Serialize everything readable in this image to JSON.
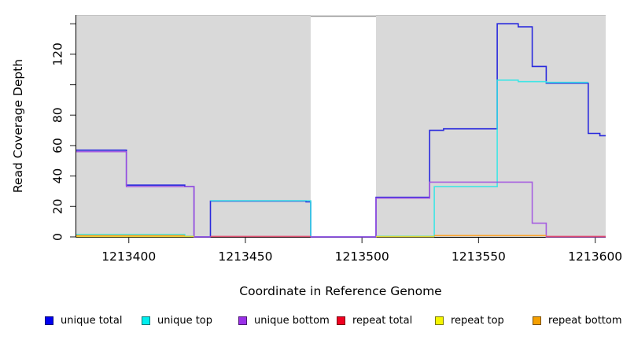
{
  "chart_data": {
    "type": "line",
    "subtype": "step-coverage",
    "title": "",
    "xlabel": "Coordinate in Reference Genome",
    "ylabel": "Read Coverage Depth",
    "xlim": [
      1213377.5,
      1213604.5
    ],
    "ylim": [
      0,
      145.8
    ],
    "x_ticks": [
      1213400,
      1213450,
      1213500,
      1213550,
      1213600
    ],
    "y_ticks_labeled": [
      0,
      20,
      40,
      60,
      80,
      120
    ],
    "y_ticks_unlabeled": [
      100,
      140
    ],
    "grid": false,
    "plot_background": "#d9d9d9",
    "masked_region": {
      "start": 1213478,
      "end": 1213506,
      "color": "#ffffff"
    },
    "legend_position": "bottom",
    "series": [
      {
        "name": "unique total",
        "color": "#1515dd",
        "legend_color": "#0000f0",
        "segments": [
          {
            "steps": [
              [
                1213377.5,
                57
              ],
              [
                1213399,
                34
              ],
              [
                1213424,
                33
              ],
              [
                1213428,
                0
              ],
              [
                1213435,
                23.5
              ],
              [
                1213476,
                23
              ],
              [
                1213478,
                0
              ],
              [
                1213506,
                26
              ],
              [
                1213529,
                70
              ],
              [
                1213535,
                71
              ],
              [
                1213558,
                140
              ],
              [
                1213567,
                138
              ],
              [
                1213573,
                112
              ],
              [
                1213579,
                101
              ],
              [
                1213597,
                68
              ],
              [
                1213602,
                66.5
              ]
            ],
            "end": 1213604.5
          }
        ]
      },
      {
        "name": "unique top",
        "color": "#30e6e6",
        "legend_color": "#00eeee",
        "segments": [
          {
            "steps": [
              [
                1213377.5,
                1.6
              ],
              [
                1213424,
                0.4
              ]
            ],
            "end": 1213428
          },
          {
            "steps": [
              [
                1213435,
                23.8
              ],
              [
                1213478,
                0
              ]
            ],
            "end": 1213478
          },
          {
            "steps": [
              [
                1213506,
                0.4
              ],
              [
                1213531,
                33
              ],
              [
                1213558,
                103
              ],
              [
                1213567,
                102
              ],
              [
                1213579,
                101.5
              ]
            ],
            "end": 1213597
          }
        ]
      },
      {
        "name": "unique bottom",
        "color": "#a050e0",
        "legend_color": "#9a30e8",
        "segments": [
          {
            "steps": [
              [
                1213377.5,
                56
              ],
              [
                1213399,
                33
              ],
              [
                1213428,
                0
              ]
            ],
            "end": 1213435
          },
          {
            "steps": [
              [
                1213478,
                0
              ],
              [
                1213506,
                25.5
              ],
              [
                1213529,
                36
              ],
              [
                1213573,
                9
              ],
              [
                1213579,
                0
              ]
            ],
            "end": 1213604.5
          }
        ]
      },
      {
        "name": "repeat total",
        "color": "#e04468",
        "legend_color": "#f00020",
        "segments": [
          {
            "steps": [
              [
                1213435,
                0.3
              ]
            ],
            "end": 1213478
          },
          {
            "steps": [
              [
                1213579,
                0.3
              ]
            ],
            "end": 1213604.5
          }
        ]
      },
      {
        "name": "repeat top",
        "color": "#ecd826",
        "legend_color": "#f5f500",
        "segments": [
          {
            "steps": [
              [
                1213377.5,
                0.3
              ]
            ],
            "end": 1213428
          },
          {
            "steps": [
              [
                1213506,
                0.2
              ]
            ],
            "end": 1213531
          }
        ]
      },
      {
        "name": "repeat bottom",
        "color": "#ff9f1a",
        "legend_color": "#f5a000",
        "segments": [
          {
            "steps": [
              [
                1213377.5,
                0.9
              ]
            ],
            "end": 1213424
          },
          {
            "steps": [
              [
                1213531,
                0.9
              ]
            ],
            "end": 1213579
          }
        ]
      }
    ]
  },
  "labels": {
    "xlabel": "Coordinate in Reference Genome",
    "ylabel": "Read Coverage Depth"
  }
}
